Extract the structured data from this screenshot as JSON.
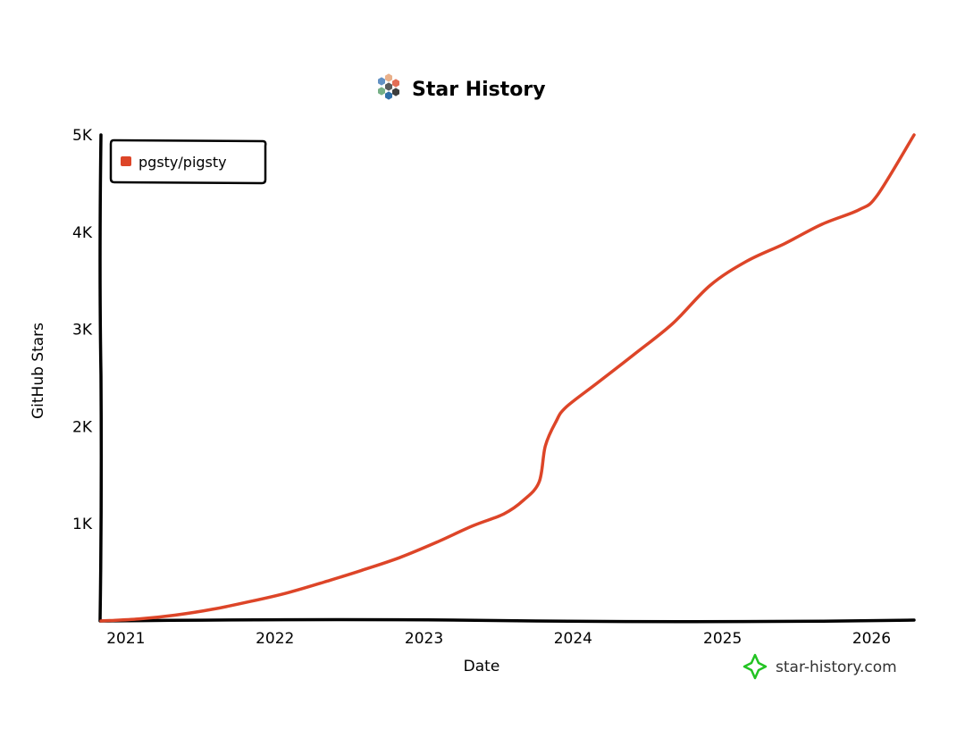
{
  "colors": {
    "series": "#dd4528",
    "axis": "#000000",
    "watermark_icon": "#22c322",
    "logo": [
      "#6391c4",
      "#e9b08a",
      "#e36d55",
      "#76b086",
      "#3d3d3d",
      "#2f6fa9",
      "#5a5a5a"
    ]
  },
  "header": {
    "title": "Star History",
    "logo_icon": "star-history-logo-icon"
  },
  "watermark": {
    "text": "star-history.com",
    "icon": "sparkle-star-icon"
  },
  "chart_data": {
    "type": "line",
    "title": "Star History",
    "xlabel": "Date",
    "ylabel": "GitHub Stars",
    "x_ticks": [
      "2021",
      "2022",
      "2023",
      "2024",
      "2025",
      "2026"
    ],
    "y_ticks": [
      "1K",
      "2K",
      "3K",
      "4K",
      "5K"
    ],
    "ylim": [
      0,
      5000
    ],
    "xlim": [
      "2020-11-01",
      "2026-04-15"
    ],
    "grid": false,
    "legend_position": "top-left",
    "series": [
      {
        "name": "pgsty/pigsty",
        "points": [
          [
            "2020-11-01",
            0
          ],
          [
            "2021-02-01",
            20
          ],
          [
            "2021-05-01",
            60
          ],
          [
            "2021-08-01",
            120
          ],
          [
            "2021-11-01",
            200
          ],
          [
            "2022-02-01",
            290
          ],
          [
            "2022-05-01",
            400
          ],
          [
            "2022-08-01",
            520
          ],
          [
            "2022-11-01",
            650
          ],
          [
            "2023-02-01",
            810
          ],
          [
            "2023-05-01",
            980
          ],
          [
            "2023-07-15",
            1100
          ],
          [
            "2023-09-01",
            1240
          ],
          [
            "2023-10-10",
            1430
          ],
          [
            "2023-10-25",
            1800
          ],
          [
            "2023-11-20",
            2050
          ],
          [
            "2023-12-15",
            2200
          ],
          [
            "2024-03-01",
            2450
          ],
          [
            "2024-06-01",
            2750
          ],
          [
            "2024-09-01",
            3060
          ],
          [
            "2024-12-01",
            3450
          ],
          [
            "2025-03-01",
            3700
          ],
          [
            "2025-06-01",
            3880
          ],
          [
            "2025-09-01",
            4080
          ],
          [
            "2025-12-01",
            4230
          ],
          [
            "2026-01-15",
            4380
          ],
          [
            "2026-04-15",
            5000
          ]
        ]
      }
    ]
  }
}
